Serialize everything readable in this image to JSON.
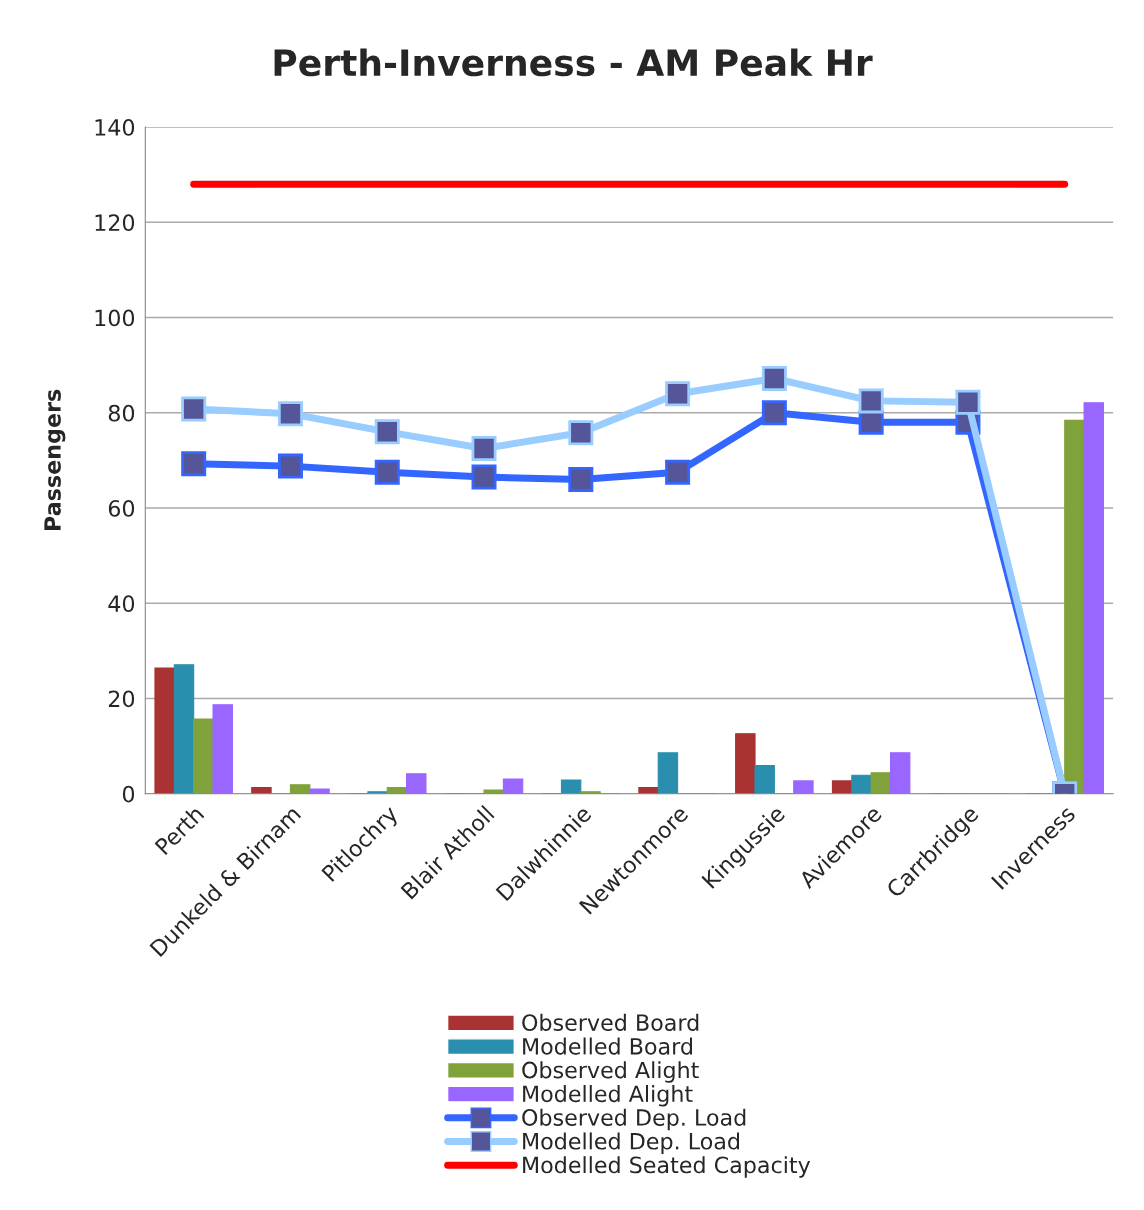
{
  "chart_data": {
    "type": "bar",
    "title": "Perth-Inverness - AM Peak Hr",
    "ylabel": "Passengers",
    "categories": [
      "Perth",
      "Dunkeld & Birnam",
      "Pitlochry",
      "Blair Atholl",
      "Dalwhinnie",
      "Newtonmore",
      "Kingussie",
      "Aviemore",
      "Carrbridge",
      "Inverness"
    ],
    "series": [
      {
        "name": "Observed Board",
        "color": "#a93232",
        "values": [
          26.4,
          1.3,
          0,
          0,
          0,
          1.3,
          12.6,
          2.7,
          0,
          0
        ]
      },
      {
        "name": "Modelled Board",
        "color": "#2a8fae",
        "values": [
          27.1,
          0,
          0.4,
          0,
          2.9,
          8.6,
          5.9,
          3.9,
          0,
          0
        ]
      },
      {
        "name": "Observed Alight",
        "color": "#7fa33a",
        "values": [
          15.7,
          1.9,
          1.3,
          0.8,
          0.4,
          0,
          0,
          4.4,
          0,
          78.4
        ]
      },
      {
        "name": "Modelled Alight",
        "color": "#9966ff",
        "values": [
          18.7,
          1.0,
          4.2,
          3.1,
          0,
          0,
          2.7,
          8.6,
          0,
          82.1
        ]
      },
      {
        "name": "Observed Dep. Load",
        "type": "line",
        "color": "#3366ff",
        "marker": "square",
        "values": [
          69.3,
          68.8,
          67.5,
          66.5,
          66,
          67.5,
          80,
          78,
          78,
          0
        ]
      },
      {
        "name": "Modelled Dep. Load",
        "type": "line",
        "color": "#99ccff",
        "marker": "square",
        "values": [
          80.8,
          79.8,
          76,
          72.5,
          75.8,
          84,
          87.2,
          82.5,
          82.2,
          0
        ]
      },
      {
        "name": "Modelled Seated Capacity",
        "type": "line",
        "color": "#ff0000",
        "values": [
          128,
          128,
          128,
          128,
          128,
          128,
          128,
          128,
          128,
          128
        ]
      }
    ],
    "ylim": [
      0,
      140
    ],
    "yticks": [
      0,
      20,
      40,
      60,
      80,
      100,
      120,
      140
    ],
    "grid": "y",
    "legend": "bottom"
  }
}
